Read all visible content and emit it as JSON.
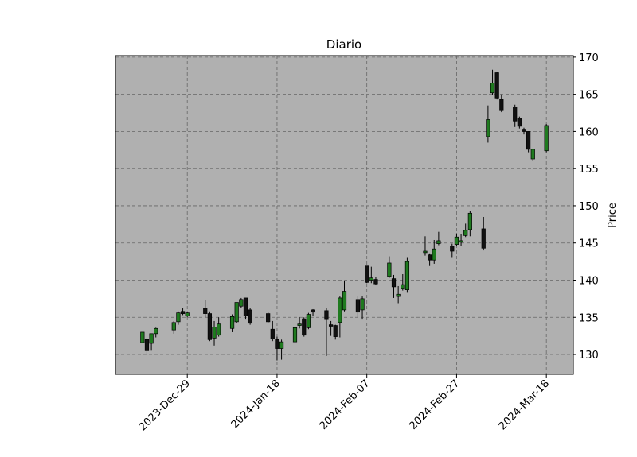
{
  "chart_data": {
    "type": "candlestick",
    "title": "Diario",
    "ylabel": "Price",
    "x": [
      "2023-12-19",
      "2023-12-20",
      "2023-12-21",
      "2023-12-22",
      "2023-12-26",
      "2023-12-27",
      "2023-12-28",
      "2023-12-29",
      "2024-01-02",
      "2024-01-03",
      "2024-01-04",
      "2024-01-05",
      "2024-01-08",
      "2024-01-09",
      "2024-01-10",
      "2024-01-11",
      "2024-01-12",
      "2024-01-16",
      "2024-01-17",
      "2024-01-18",
      "2024-01-19",
      "2024-01-22",
      "2024-01-23",
      "2024-01-24",
      "2024-01-25",
      "2024-01-26",
      "2024-01-29",
      "2024-01-30",
      "2024-01-31",
      "2024-02-01",
      "2024-02-02",
      "2024-02-05",
      "2024-02-06",
      "2024-02-07",
      "2024-02-08",
      "2024-02-09",
      "2024-02-12",
      "2024-02-13",
      "2024-02-14",
      "2024-02-15",
      "2024-02-16",
      "2024-02-20",
      "2024-02-21",
      "2024-02-22",
      "2024-02-23",
      "2024-02-26",
      "2024-02-27",
      "2024-02-28",
      "2024-02-29",
      "2024-03-01",
      "2024-03-04",
      "2024-03-05",
      "2024-03-06",
      "2024-03-07",
      "2024-03-08",
      "2024-03-11",
      "2024-03-12",
      "2024-03-13",
      "2024-03-14",
      "2024-03-15",
      "2024-03-18"
    ],
    "open": [
      131.6,
      132.0,
      131.5,
      132.8,
      133.3,
      134.4,
      135.8,
      135.2,
      136.2,
      135.5,
      132.2,
      132.6,
      133.5,
      134.4,
      136.5,
      137.6,
      136.0,
      135.5,
      133.4,
      132.0,
      130.8,
      131.7,
      133.9,
      134.8,
      133.6,
      136.0,
      135.9,
      134.0,
      133.9,
      134.3,
      136.0,
      137.4,
      136.0,
      141.9,
      140.0,
      140.1,
      140.5,
      140.2,
      137.8,
      138.9,
      138.7,
      143.7,
      143.4,
      142.7,
      144.9,
      144.6,
      144.8,
      145.1,
      146.0,
      146.8,
      146.9,
      159.3,
      165.2,
      167.9,
      164.3,
      163.3,
      161.8,
      160.3,
      160.0,
      156.3,
      157.4
    ],
    "high": [
      133.0,
      132.2,
      132.8,
      133.6,
      134.5,
      135.8,
      136.2,
      135.8,
      137.3,
      135.8,
      134.5,
      135.0,
      135.4,
      137.0,
      137.6,
      137.6,
      136.3,
      135.7,
      134.5,
      132.4,
      132.0,
      134.3,
      135.0,
      135.0,
      135.6,
      136.1,
      136.2,
      134.5,
      134.0,
      137.8,
      139.9,
      137.8,
      137.8,
      141.9,
      141.8,
      140.4,
      143.2,
      140.7,
      139.2,
      140.8,
      143.1,
      145.9,
      143.6,
      145.4,
      146.5,
      144.9,
      146.3,
      146.2,
      147.6,
      149.3,
      148.5,
      163.5,
      168.3,
      168.0,
      165.0,
      163.6,
      162.0,
      160.5,
      160.0,
      157.6,
      161.0
    ],
    "low": [
      131.5,
      130.1,
      130.5,
      132.3,
      132.8,
      134.0,
      135.3,
      135.0,
      135.0,
      131.8,
      131.2,
      132.4,
      133.0,
      134.2,
      136.3,
      134.8,
      134.0,
      134.2,
      131.8,
      129.2,
      129.3,
      131.5,
      133.5,
      132.4,
      133.4,
      135.2,
      129.8,
      132.5,
      132.0,
      132.3,
      135.8,
      135.0,
      134.8,
      139.6,
      139.6,
      139.3,
      140.3,
      137.6,
      136.9,
      138.6,
      138.3,
      143.3,
      141.9,
      142.2,
      144.7,
      143.1,
      144.6,
      144.6,
      145.8,
      145.9,
      144.0,
      158.5,
      164.9,
      164.3,
      162.6,
      160.6,
      160.4,
      159.6,
      157.2,
      156.0,
      157.2
    ],
    "close": [
      133.0,
      130.5,
      132.8,
      133.5,
      134.3,
      135.6,
      135.5,
      135.6,
      135.5,
      132.0,
      133.7,
      134.1,
      135.1,
      137.0,
      137.4,
      135.2,
      134.2,
      134.4,
      132.1,
      130.8,
      131.7,
      133.6,
      134.1,
      132.6,
      135.4,
      135.7,
      134.8,
      133.8,
      132.4,
      137.6,
      138.5,
      135.7,
      137.5,
      139.7,
      140.3,
      139.5,
      142.3,
      139.1,
      138.1,
      139.4,
      142.5,
      143.9,
      142.7,
      144.2,
      145.3,
      143.9,
      145.8,
      145.3,
      146.7,
      149.0,
      144.3,
      161.6,
      166.5,
      164.5,
      162.8,
      161.4,
      160.7,
      160.0,
      157.6,
      157.6,
      160.8
    ],
    "up_color": "#1f7a1f",
    "down_color": "#111111",
    "background": "#b0b0b0",
    "grid": true,
    "xlim": [
      "2023-12-13",
      "2024-03-24"
    ],
    "xticks": [
      {
        "value": "2023-12-29",
        "label": "2023-Dec-29"
      },
      {
        "value": "2024-01-18",
        "label": "2024-Jan-18"
      },
      {
        "value": "2024-02-07",
        "label": "2024-Feb-07"
      },
      {
        "value": "2024-02-27",
        "label": "2024-Feb-27"
      },
      {
        "value": "2024-03-18",
        "label": "2024-Mar-18"
      }
    ],
    "ylim": [
      127.33,
      170.2
    ],
    "yticks": [
      130,
      135,
      140,
      145,
      150,
      155,
      160,
      165,
      170
    ]
  }
}
